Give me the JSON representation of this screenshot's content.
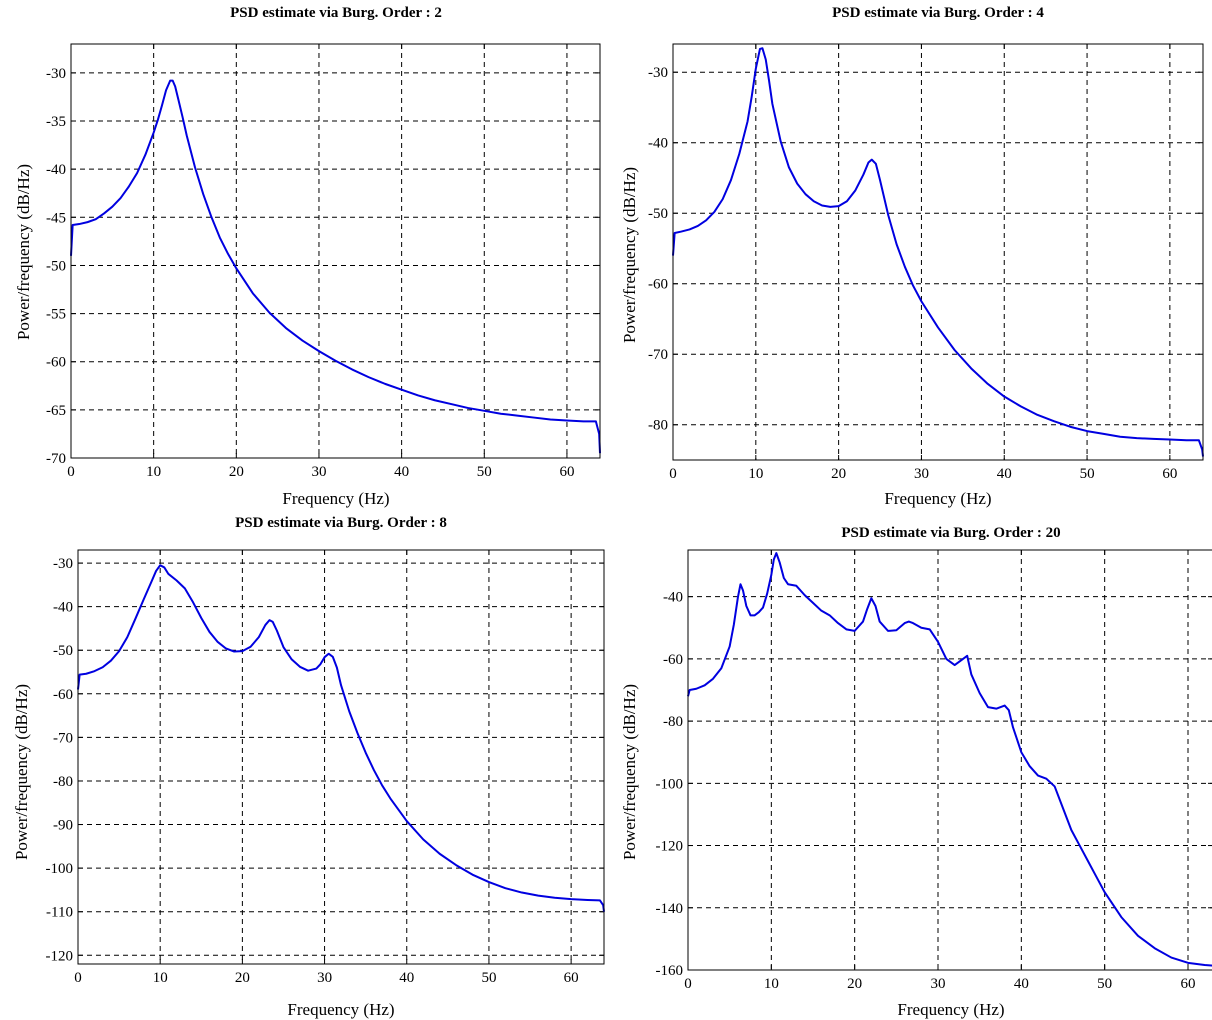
{
  "chart_data": [
    {
      "type": "line",
      "title": "PSD estimate via Burg. Order : 2",
      "xlabel": "Frequency (Hz)",
      "ylabel": "Power/frequency (dB/Hz)",
      "xlim": [
        0,
        64
      ],
      "ylim": [
        -70,
        -27
      ],
      "xticks": [
        0,
        10,
        20,
        30,
        40,
        50,
        60
      ],
      "yticks": [
        -70,
        -65,
        -60,
        -55,
        -50,
        -45,
        -40,
        -35,
        -30
      ],
      "grid": true,
      "color": "#0000e0",
      "series": [
        {
          "x": [
            0,
            0.2,
            1,
            2,
            3,
            4,
            5,
            6,
            7,
            8,
            9,
            10,
            10.5,
            11,
            11.5,
            12,
            12.3,
            12.6,
            13,
            13.5,
            14,
            15,
            16,
            17,
            18,
            19,
            20,
            22,
            24,
            26,
            28,
            30,
            32,
            34,
            36,
            38,
            40,
            42,
            44,
            46,
            48,
            50,
            52,
            54,
            56,
            58,
            60,
            62,
            63.5,
            63.9,
            64
          ],
          "y": [
            -49,
            -45.8,
            -45.7,
            -45.5,
            -45.2,
            -44.6,
            -43.9,
            -43,
            -41.8,
            -40.4,
            -38.5,
            -36.2,
            -34.9,
            -33.4,
            -31.8,
            -30.8,
            -30.8,
            -31.4,
            -32.8,
            -34.6,
            -36.5,
            -39.8,
            -42.6,
            -45,
            -47.1,
            -48.8,
            -50.3,
            -52.9,
            -54.9,
            -56.5,
            -57.8,
            -58.9,
            -59.9,
            -60.8,
            -61.6,
            -62.3,
            -62.9,
            -63.5,
            -64,
            -64.4,
            -64.8,
            -65.1,
            -65.4,
            -65.6,
            -65.8,
            -66,
            -66.1,
            -66.2,
            -66.2,
            -67.5,
            -69.5
          ]
        }
      ]
    },
    {
      "type": "line",
      "title": "PSD estimate via Burg. Order : 4",
      "xlabel": "Frequency (Hz)",
      "ylabel": "Power/frequency (dB/Hz)",
      "xlim": [
        0,
        64
      ],
      "ylim": [
        -85,
        -26
      ],
      "xticks": [
        0,
        10,
        20,
        30,
        40,
        50,
        60
      ],
      "yticks": [
        -80,
        -70,
        -60,
        -50,
        -40,
        -30
      ],
      "grid": true,
      "color": "#0000e0",
      "series": [
        {
          "x": [
            0,
            0.2,
            1,
            2,
            3,
            4,
            5,
            6,
            7,
            8,
            9,
            9.5,
            10,
            10.5,
            10.8,
            11.2,
            11.6,
            12,
            13,
            14,
            15,
            16,
            17,
            18,
            19,
            20,
            21,
            22,
            23,
            23.6,
            24,
            24.5,
            25,
            26,
            27,
            28,
            29,
            30,
            32,
            34,
            36,
            38,
            40,
            42,
            44,
            46,
            48,
            50,
            52,
            54,
            56,
            58,
            60,
            62,
            63.5,
            63.9,
            64
          ],
          "y": [
            -56,
            -52.8,
            -52.6,
            -52.3,
            -51.8,
            -51,
            -49.8,
            -48,
            -45.3,
            -41.6,
            -37,
            -33.5,
            -29.5,
            -26.7,
            -26.6,
            -28.2,
            -31.2,
            -34.5,
            -39.8,
            -43.5,
            -45.8,
            -47.3,
            -48.3,
            -48.9,
            -49.1,
            -49,
            -48.3,
            -46.8,
            -44.5,
            -42.8,
            -42.4,
            -43,
            -45.3,
            -50.3,
            -54.4,
            -57.6,
            -60.3,
            -62.5,
            -66.2,
            -69.4,
            -72,
            -74.2,
            -76,
            -77.4,
            -78.6,
            -79.5,
            -80.3,
            -80.9,
            -81.3,
            -81.7,
            -81.9,
            -82,
            -82.1,
            -82.2,
            -82.2,
            -83.5,
            -84.5
          ]
        }
      ]
    },
    {
      "type": "line",
      "title": "PSD estimate via Burg. Order : 8",
      "xlabel": "Frequency (Hz)",
      "ylabel": "Power/frequency (dB/Hz)",
      "xlim": [
        0,
        64
      ],
      "ylim": [
        -122,
        -27
      ],
      "xticks": [
        0,
        10,
        20,
        30,
        40,
        50,
        60
      ],
      "yticks": [
        -120,
        -110,
        -100,
        -90,
        -80,
        -70,
        -60,
        -50,
        -40,
        -30
      ],
      "grid": true,
      "color": "#0000e0",
      "series": [
        {
          "x": [
            0,
            0.2,
            1,
            2,
            3,
            4,
            5,
            6,
            7,
            8,
            9,
            9.5,
            10,
            10.5,
            11,
            12,
            13,
            14,
            15,
            16,
            17,
            18,
            19,
            20,
            21,
            22,
            22.8,
            23.3,
            23.7,
            24.2,
            25,
            26,
            27,
            28,
            29,
            29.5,
            30,
            30.5,
            31,
            31.5,
            32,
            33,
            34,
            35,
            36,
            37,
            38,
            40,
            42,
            44,
            46,
            48,
            50,
            52,
            54,
            56,
            58,
            60,
            62,
            63.5,
            63.9,
            64
          ],
          "y": [
            -59,
            -55.6,
            -55.4,
            -54.8,
            -53.9,
            -52.4,
            -50.2,
            -47,
            -42.7,
            -38.3,
            -34,
            -31.8,
            -30.5,
            -31,
            -32.5,
            -34,
            -35.8,
            -39,
            -42.6,
            -45.8,
            -48.1,
            -49.6,
            -50.3,
            -50.2,
            -49.2,
            -47,
            -44.2,
            -43.1,
            -43.5,
            -45.5,
            -49.3,
            -52.1,
            -53.8,
            -54.7,
            -54.2,
            -53.2,
            -51.6,
            -50.8,
            -51.5,
            -54,
            -58,
            -64,
            -69,
            -73.5,
            -77.5,
            -81,
            -84,
            -89.2,
            -93.4,
            -96.7,
            -99.3,
            -101.5,
            -103.2,
            -104.6,
            -105.6,
            -106.3,
            -106.8,
            -107.1,
            -107.3,
            -107.4,
            -108.5,
            -110
          ]
        }
      ]
    },
    {
      "type": "line",
      "title": "PSD estimate via Burg. Order : 20",
      "xlabel": "Frequency (Hz)",
      "ylabel": "Power/frequency (dB/Hz)",
      "xlim": [
        0,
        63
      ],
      "ylim": [
        -160,
        -25
      ],
      "xticks": [
        0,
        10,
        20,
        30,
        40,
        50,
        60
      ],
      "yticks": [
        -160,
        -140,
        -120,
        -100,
        -80,
        -60,
        -40
      ],
      "grid": true,
      "color": "#0000e0",
      "series": [
        {
          "x": [
            0,
            0.2,
            1,
            2,
            3,
            4,
            5,
            5.5,
            6,
            6.3,
            6.6,
            7,
            7.5,
            8,
            8.5,
            9,
            9.5,
            10,
            10.3,
            10.6,
            11,
            11.5,
            12,
            13,
            14,
            15,
            16,
            17,
            18,
            19,
            20,
            21,
            21.5,
            22,
            22.5,
            23,
            24,
            25,
            26,
            26.5,
            27,
            28,
            29,
            30,
            31,
            32,
            33,
            33.5,
            34,
            35,
            36,
            37,
            38,
            38.5,
            39,
            40,
            41,
            42,
            43,
            44,
            45,
            46,
            47,
            48,
            49,
            50,
            52,
            54,
            56,
            58,
            60,
            62,
            63
          ],
          "y": [
            -72,
            -70,
            -69.6,
            -68.5,
            -66.4,
            -63,
            -56,
            -49,
            -40,
            -36,
            -38,
            -43,
            -46,
            -46,
            -45,
            -43.5,
            -39,
            -33,
            -28,
            -26,
            -29,
            -34,
            -36,
            -36.5,
            -39.5,
            -42,
            -44.5,
            -46,
            -48.5,
            -50.5,
            -51,
            -48,
            -44,
            -40.5,
            -43,
            -48,
            -51,
            -50.8,
            -48.5,
            -48,
            -48.5,
            -50,
            -50.5,
            -54.5,
            -60,
            -62,
            -60,
            -59,
            -65,
            -71,
            -75.5,
            -76,
            -75,
            -76.5,
            -82,
            -90,
            -94.5,
            -97.5,
            -98.5,
            -101,
            -108,
            -115,
            -120,
            -125,
            -130,
            -135,
            -143,
            -149,
            -153,
            -156,
            -157.7,
            -158.4,
            -158.6
          ]
        }
      ]
    }
  ]
}
